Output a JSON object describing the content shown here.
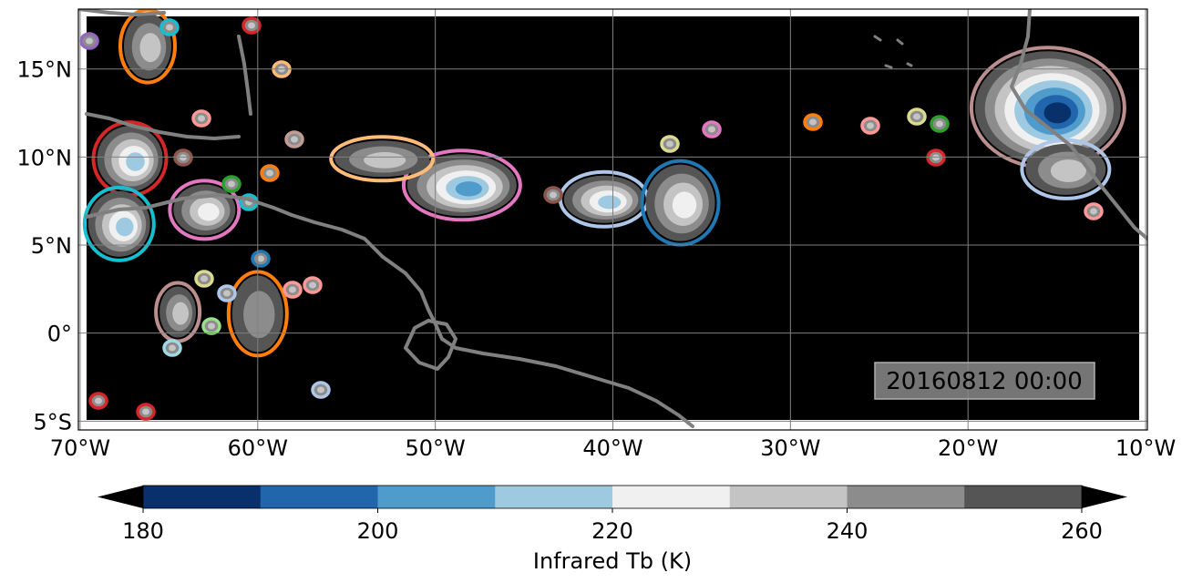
{
  "map": {
    "timestamp": "20160812 00:00",
    "lon_ticks": [
      {
        "value": -70,
        "label": "70°W"
      },
      {
        "value": -60,
        "label": "60°W"
      },
      {
        "value": -50,
        "label": "50°W"
      },
      {
        "value": -40,
        "label": "40°W"
      },
      {
        "value": -30,
        "label": "30°W"
      },
      {
        "value": -20,
        "label": "20°W"
      },
      {
        "value": -10,
        "label": "10°W"
      }
    ],
    "lat_ticks": [
      {
        "value": 15,
        "label": "15°N"
      },
      {
        "value": 10,
        "label": "10°N"
      },
      {
        "value": 5,
        "label": "5°N"
      },
      {
        "value": 0,
        "label": "0°"
      },
      {
        "value": -5,
        "label": "5°S"
      }
    ],
    "lon_range": [
      -70.1,
      -9.9
    ],
    "lat_range": [
      -5.5,
      18.4
    ],
    "background_color": "#000000",
    "coast_color": "#808080",
    "grid": true
  },
  "colorbar": {
    "label": "Infrared Tb (K)",
    "ticks": [
      {
        "value": 180,
        "label": "180"
      },
      {
        "value": 200,
        "label": "200"
      },
      {
        "value": 220,
        "label": "220"
      },
      {
        "value": 240,
        "label": "240"
      },
      {
        "value": 260,
        "label": "260"
      }
    ],
    "range": [
      180,
      260
    ],
    "colors": [
      "#08306b",
      "#2166ac",
      "#4f9bcb",
      "#9ecae1",
      "#f0f0f0",
      "#c4c4c4",
      "#8c8c8c",
      "#555555"
    ],
    "extend": "both"
  },
  "systems": [
    {
      "lon": -48.5,
      "lat": 8.4,
      "core_k": 205,
      "outline": "#e377c2"
    },
    {
      "lon": -40.5,
      "lat": 7.6,
      "core_k": 210,
      "outline": "#aec7e8"
    },
    {
      "lon": -36.2,
      "lat": 7.4,
      "core_k": 222,
      "outline": "#1f77b4"
    },
    {
      "lon": -53.0,
      "lat": 9.9,
      "core_k": 228,
      "outline": "#ffbb78"
    },
    {
      "lon": -15.5,
      "lat": 12.8,
      "core_k": 185,
      "outline": "#bc8f8f"
    },
    {
      "lon": -14.5,
      "lat": 9.3,
      "core_k": 235,
      "outline": "#aec7e8"
    },
    {
      "lon": -67.2,
      "lat": 9.9,
      "core_k": 212,
      "outline": "#d62728"
    },
    {
      "lon": -67.8,
      "lat": 6.2,
      "core_k": 212,
      "outline": "#17becf"
    },
    {
      "lon": -63.0,
      "lat": 7.0,
      "core_k": 225,
      "outline": "#e377c2"
    },
    {
      "lon": -60.0,
      "lat": 1.1,
      "core_k": 238,
      "outline": "#ff7f0e"
    },
    {
      "lon": -64.5,
      "lat": 1.2,
      "core_k": 230,
      "outline": "#bc8f8f"
    },
    {
      "lon": -66.2,
      "lat": 16.3,
      "core_k": 232,
      "outline": "#ff7f0e"
    }
  ]
}
